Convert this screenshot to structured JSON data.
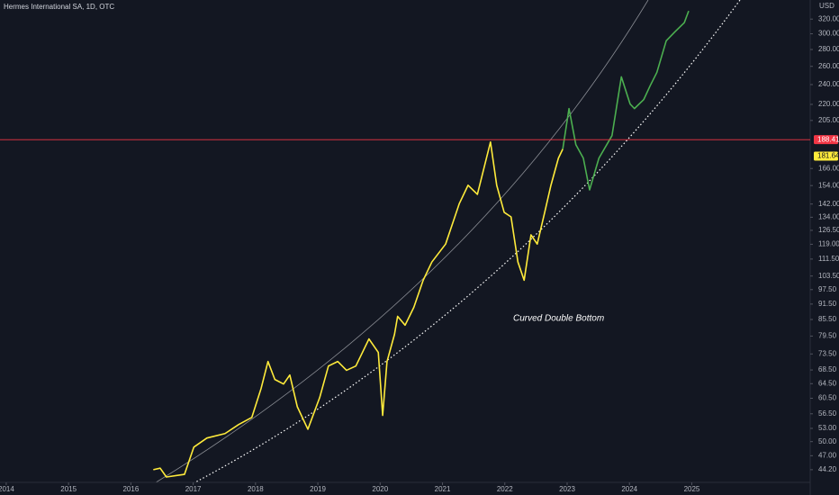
{
  "chart_data": {
    "type": "line",
    "title": "Hermes International SA, 1D, OTC",
    "y_unit": "USD",
    "log_scale": true,
    "annotation": "Curved Double Bottom",
    "xlim": [
      2013.9,
      2026.9
    ],
    "xticks": [
      2014,
      2015,
      2016,
      2017,
      2018,
      2019,
      2020,
      2021,
      2022,
      2023,
      2024,
      2025
    ],
    "ylim": [
      41.8,
      348
    ],
    "yticks": [
      {
        "value": 320,
        "label": "320.00"
      },
      {
        "value": 300,
        "label": "300.00"
      },
      {
        "value": 280,
        "label": "280.00"
      },
      {
        "value": 260,
        "label": "260.00"
      },
      {
        "value": 240,
        "label": "240.00"
      },
      {
        "value": 220,
        "label": "220.00"
      },
      {
        "value": 205,
        "label": "205.00"
      },
      {
        "value": 166,
        "label": "166.00"
      },
      {
        "value": 154,
        "label": "154.00"
      },
      {
        "value": 142,
        "label": "142.00"
      },
      {
        "value": 134,
        "label": "134.00"
      },
      {
        "value": 126.5,
        "label": "126.50"
      },
      {
        "value": 119,
        "label": "119.00"
      },
      {
        "value": 111.5,
        "label": "111.50"
      },
      {
        "value": 103.5,
        "label": "103.50"
      },
      {
        "value": 97.5,
        "label": "97.50"
      },
      {
        "value": 91.5,
        "label": "91.50"
      },
      {
        "value": 85.5,
        "label": "85.50"
      },
      {
        "value": 79.5,
        "label": "79.50"
      },
      {
        "value": 73.5,
        "label": "73.50"
      },
      {
        "value": 68.5,
        "label": "68.50"
      },
      {
        "value": 64.5,
        "label": "64.50"
      },
      {
        "value": 60.5,
        "label": "60.50"
      },
      {
        "value": 56.5,
        "label": "56.50"
      },
      {
        "value": 53,
        "label": "53.00"
      },
      {
        "value": 50,
        "label": "50.00"
      },
      {
        "value": 47,
        "label": "47.00"
      },
      {
        "value": 44.2,
        "label": "44.20"
      }
    ],
    "markers": [
      {
        "value": 188.41,
        "label": "188.41",
        "color": "#f23645"
      },
      {
        "value": 181.64,
        "label": "181.64",
        "color": "#ffeb3b"
      }
    ],
    "series": [
      {
        "color": "#ffeb3b",
        "x": [
          2016.36,
          2016.47,
          2016.57,
          2016.86,
          2017.01,
          2017.22,
          2017.51,
          2017.73,
          2017.94,
          2018.09,
          2018.2,
          2018.31,
          2018.45,
          2018.55,
          2018.67,
          2018.84,
          2019.03,
          2019.17,
          2019.32,
          2019.46,
          2019.61,
          2019.82,
          2019.97,
          2020.04,
          2020.11,
          2020.23,
          2020.28,
          2020.4,
          2020.54,
          2020.69,
          2020.83,
          2021.05,
          2021.27,
          2021.41,
          2021.56,
          2021.77,
          2021.87,
          2021.99,
          2022.1,
          2022.21,
          2022.31,
          2022.42,
          2022.52,
          2022.64,
          2022.74,
          2022.86,
          2022.93
        ],
        "values": [
          44.2,
          44.5,
          42.8,
          43.3,
          48.8,
          50.8,
          51.8,
          53.9,
          55.6,
          63.2,
          71.1,
          65.7,
          64.4,
          67.0,
          58.3,
          52.8,
          60.7,
          69.7,
          71.1,
          68.4,
          69.7,
          78.5,
          74.0,
          56.1,
          71.1,
          80.1,
          86.7,
          83.4,
          90.2,
          101.6,
          110.1,
          119.1,
          142.3,
          154.2,
          148.2,
          186.5,
          154.2,
          136.9,
          134.2,
          110.1,
          101.6,
          124.0,
          119.1,
          136.9,
          154.2,
          173.7,
          180.8
        ]
      },
      {
        "color": "#4caf50",
        "x": [
          2022.93,
          2023.03,
          2023.14,
          2023.26,
          2023.36,
          2023.51,
          2023.72,
          2023.87,
          2024.01,
          2024.08,
          2024.23,
          2024.33,
          2024.44,
          2024.59,
          2024.73,
          2024.88,
          2024.95
        ],
        "values": [
          180.8,
          216.0,
          184.3,
          173.7,
          151.1,
          173.7,
          191.8,
          248.3,
          220.4,
          216.0,
          224.8,
          238.5,
          253.2,
          290.9,
          302.7,
          315,
          331.6
        ]
      }
    ]
  }
}
